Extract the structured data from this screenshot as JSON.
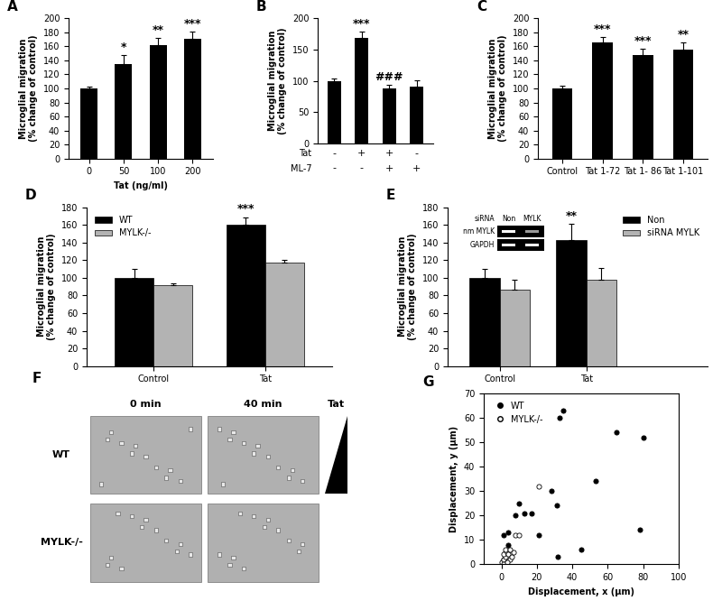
{
  "chart_data": [
    {
      "type": "bar",
      "panel": "A",
      "categories": [
        "0",
        "50",
        "100",
        "200"
      ],
      "values": [
        100,
        135,
        162,
        171
      ],
      "errors": [
        3,
        12,
        10,
        10
      ],
      "annotations": [
        null,
        "*",
        "**",
        "***"
      ],
      "color": "#000000",
      "x_label": "Tat (ng/ml)",
      "y_label": "Microglial migration\n(% change of control)",
      "ylim": [
        0,
        200
      ],
      "yticks": [
        0,
        20,
        40,
        60,
        80,
        100,
        120,
        140,
        160,
        180,
        200
      ]
    },
    {
      "type": "bar",
      "panel": "B",
      "categories": [
        null,
        null,
        null,
        null
      ],
      "values": [
        100,
        168,
        88,
        91
      ],
      "errors": [
        4,
        11,
        5,
        10
      ],
      "annotations": [
        null,
        "***",
        "###",
        null
      ],
      "color": "#000000",
      "y_label": "Microglial migration\n(% change of control)",
      "table": {
        "rows": [
          {
            "name": "Tat",
            "values": [
              "-",
              "+",
              "+",
              "-"
            ]
          },
          {
            "name": "ML-7",
            "values": [
              "-",
              "-",
              "+",
              "+"
            ]
          }
        ]
      },
      "ylim": [
        0,
        200
      ],
      "yticks": [
        0,
        50,
        100,
        150,
        200
      ]
    },
    {
      "type": "bar",
      "panel": "C",
      "categories": [
        "Control",
        "Tat 1-72",
        "Tat 1- 86",
        "Tat 1-101"
      ],
      "values": [
        100,
        166,
        148,
        155
      ],
      "errors": [
        4,
        7,
        8,
        10
      ],
      "annotations": [
        null,
        "***",
        "***",
        "**"
      ],
      "color": "#000000",
      "y_label": "Microglial migration\n(% change of control)",
      "ylim": [
        0,
        200
      ],
      "yticks": [
        0,
        20,
        40,
        60,
        80,
        100,
        120,
        140,
        160,
        180,
        200
      ]
    },
    {
      "type": "bar",
      "panel": "D",
      "categories": [
        "Control",
        "Tat"
      ],
      "series": [
        {
          "name": "WT",
          "color": "#000000",
          "values": [
            100,
            160
          ],
          "errors": [
            10,
            9
          ],
          "annotations": [
            null,
            "***"
          ]
        },
        {
          "name": "MYLK-/-",
          "color": "#b3b3b3",
          "values": [
            92,
            117
          ],
          "errors": [
            2,
            3
          ]
        }
      ],
      "y_label": "Microglial migration\n(% change of control)",
      "legend": "upper left",
      "ylim": [
        0,
        180
      ],
      "yticks": [
        0,
        20,
        40,
        60,
        80,
        100,
        120,
        140,
        160,
        180
      ]
    },
    {
      "type": "bar",
      "panel": "E",
      "categories": [
        "Control",
        "Tat"
      ],
      "series": [
        {
          "name": "Non",
          "color": "#000000",
          "values": [
            100,
            143
          ],
          "errors": [
            10,
            18
          ],
          "annotations": [
            null,
            "**"
          ]
        },
        {
          "name": "siRNA MYLK",
          "color": "#b3b3b3",
          "values": [
            87,
            98
          ],
          "errors": [
            11,
            13
          ]
        }
      ],
      "y_label": "Microglial migration\n(% change of control)",
      "legend": "upper right",
      "inset": {
        "title": "siRNA",
        "lanes": [
          "Non",
          "MYLK"
        ],
        "rows": [
          "nm MYLK",
          "GAPDH"
        ]
      },
      "ylim": [
        0,
        180
      ],
      "yticks": [
        0,
        20,
        40,
        60,
        80,
        100,
        120,
        140,
        160,
        180
      ]
    },
    {
      "type": "image",
      "panel": "F",
      "columns": [
        "0 min",
        "40 min"
      ],
      "rows": [
        "WT",
        "MYLK-/-"
      ],
      "annotations": [
        "Tat"
      ]
    },
    {
      "type": "scatter",
      "panel": "G",
      "series": [
        {
          "name": "WT",
          "color": "#000000",
          "marker": "filled_circle",
          "x": [
            1,
            4,
            8,
            10,
            13,
            17,
            21,
            28,
            31,
            32,
            33,
            35,
            45,
            53,
            65,
            78,
            80,
            2,
            1,
            4
          ],
          "y": [
            12,
            13,
            20,
            25,
            21,
            21,
            12,
            30,
            24,
            3,
            60,
            63,
            6,
            34,
            54,
            14,
            52,
            5,
            2,
            8
          ]
        },
        {
          "name": "MYLK-/-",
          "color": "#000000",
          "marker": "open_circle",
          "x": [
            0,
            1,
            2,
            1,
            3,
            2,
            5,
            4,
            6,
            8,
            10,
            21,
            7,
            1,
            3,
            5
          ],
          "y": [
            1,
            2,
            3,
            4,
            5,
            6,
            2,
            4,
            3,
            12,
            12,
            32,
            5,
            0,
            1,
            6
          ]
        }
      ],
      "x_label": "Displacement, x (μm)",
      "y_label": "Displacement, y (μm)",
      "legend": "upper left",
      "xlim": [
        -10,
        100
      ],
      "xticks": [
        0,
        20,
        40,
        60,
        80,
        100
      ],
      "ylim": [
        0,
        70
      ],
      "yticks": [
        0,
        10,
        20,
        30,
        40,
        50,
        60,
        70
      ]
    }
  ]
}
